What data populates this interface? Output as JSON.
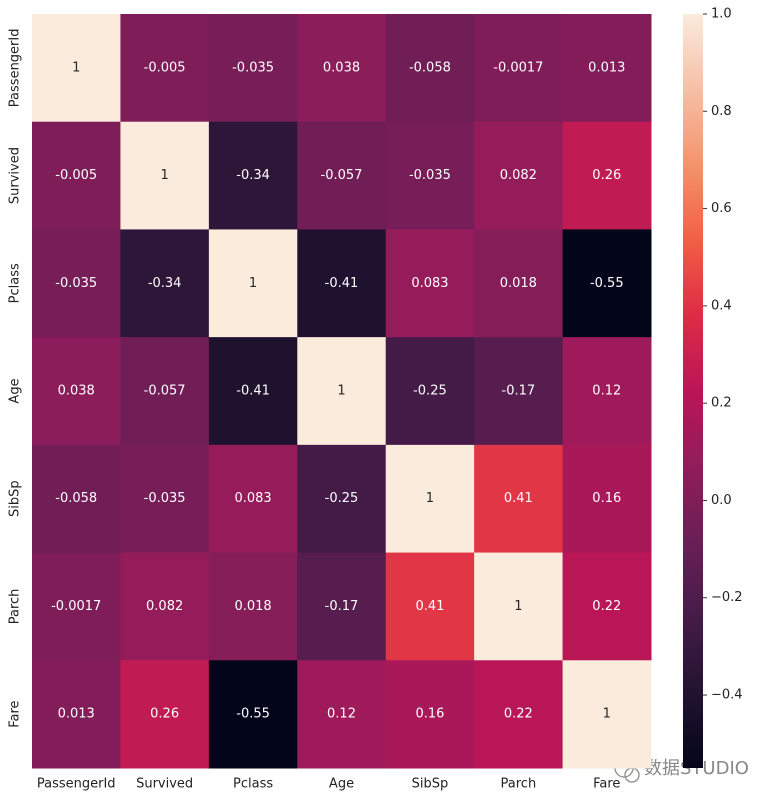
{
  "chart_data": {
    "type": "heatmap",
    "colormap": "rocket",
    "x_categories": [
      "PassengerId",
      "Survived",
      "Pclass",
      "Age",
      "SibSp",
      "Parch",
      "Fare"
    ],
    "y_categories": [
      "PassengerId",
      "Survived",
      "Pclass",
      "Age",
      "SibSp",
      "Parch",
      "Fare"
    ],
    "values": [
      [
        1,
        -0.005,
        -0.035,
        0.038,
        -0.058,
        -0.0017,
        0.013
      ],
      [
        -0.005,
        1,
        -0.34,
        -0.057,
        -0.035,
        0.082,
        0.26
      ],
      [
        -0.035,
        -0.34,
        1,
        -0.41,
        0.083,
        0.018,
        -0.55
      ],
      [
        0.038,
        -0.057,
        -0.41,
        1,
        -0.25,
        -0.17,
        0.12
      ],
      [
        -0.058,
        -0.035,
        0.083,
        -0.25,
        1,
        0.41,
        0.16
      ],
      [
        -0.0017,
        0.082,
        0.018,
        -0.17,
        0.41,
        1,
        0.22
      ],
      [
        0.013,
        0.26,
        -0.55,
        0.12,
        0.16,
        0.22,
        1
      ]
    ],
    "colorbar_lim": [
      -0.55,
      1
    ],
    "colorbar_ticks": [
      {
        "value": -0.4,
        "label": "−0.4"
      },
      {
        "value": -0.2,
        "label": "−0.2"
      },
      {
        "value": 0,
        "label": "0.0"
      },
      0.2,
      0.4,
      0.6,
      0.8,
      {
        "value": 1,
        "label": "1.0"
      }
    ],
    "watermark": "数据STUDIO"
  }
}
